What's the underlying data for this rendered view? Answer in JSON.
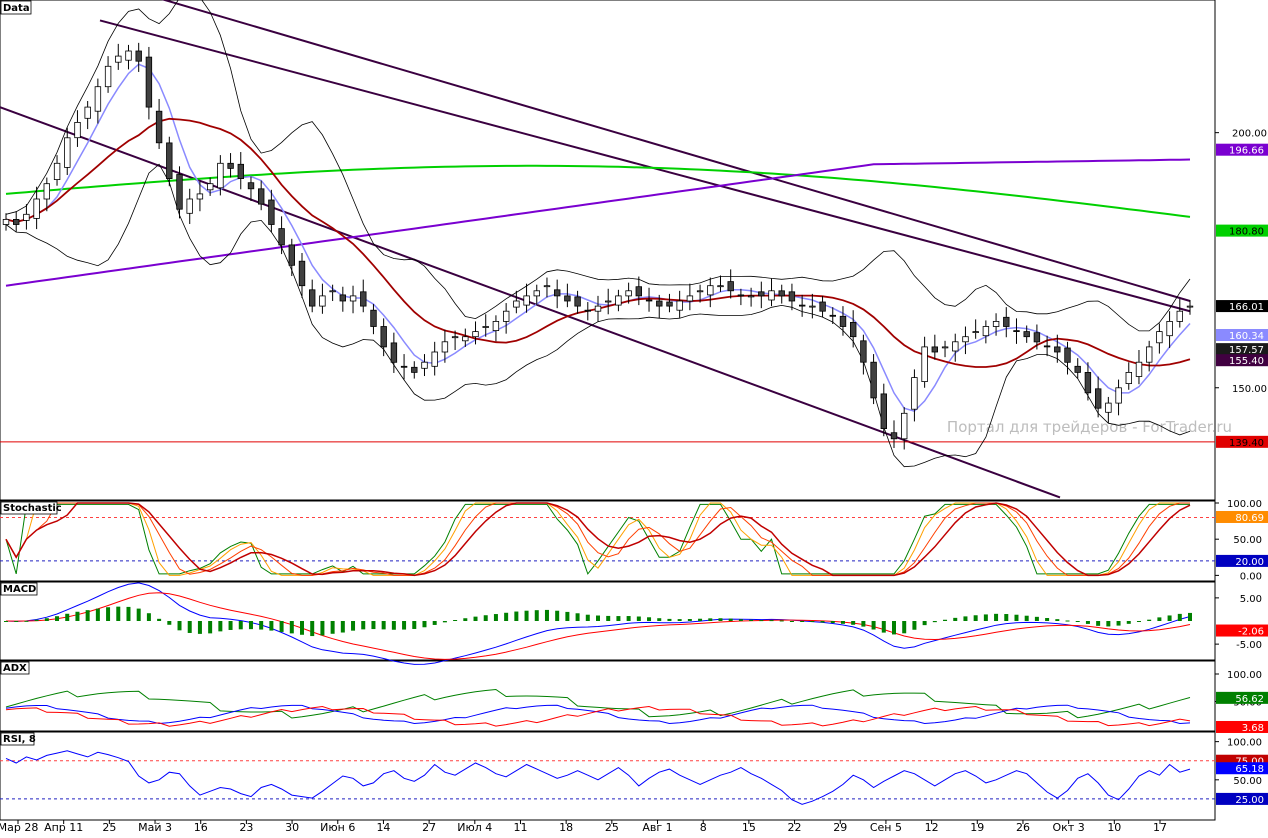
{
  "watermark": "Портал для трейдеров - ForTrader.ru",
  "colors": {
    "candle_up": "#ffffff",
    "candle_down": "#404040",
    "bollinger": "#000000",
    "ma_fast": "#8a8aff",
    "ma_mid": "#a00000",
    "ma_green": "#00d000",
    "ma_purple": "#7a00d0",
    "channel": "#3a0040",
    "support": "#e00000"
  },
  "x_axis": {
    "ticks": [
      "Мар 28",
      "Апр 11",
      "25",
      "Май 3",
      "16",
      "23",
      "30",
      "Июн 6",
      "14",
      "27",
      "Июл 4",
      "11",
      "18",
      "25",
      "Авг 1",
      "8",
      "15",
      "22",
      "29",
      "Сен 5",
      "12",
      "19",
      "26",
      "Окт 3",
      "10",
      "17"
    ]
  },
  "chart_data": [
    {
      "type": "candlestick",
      "title": "Data",
      "ylim": [
        128,
        226
      ],
      "y_ticks": [
        150,
        200
      ],
      "price_labels": [
        {
          "text": "196.66",
          "value": 196.66,
          "color": "#7a00d0",
          "text_color": "#ffffff"
        },
        {
          "text": "180.80",
          "value": 180.8,
          "color": "#00d000",
          "text_color": "#000000"
        },
        {
          "text": "166.01",
          "value": 166.01,
          "color": "#000000",
          "text_color": "#ffffff"
        },
        {
          "text": "160.34",
          "value": 160.34,
          "color": "#8a8aff",
          "text_color": "#ffffff"
        },
        {
          "text": "157.57",
          "value": 157.57,
          "color": "#1a1a1a",
          "text_color": "#ffffff"
        },
        {
          "text": "155.40",
          "value": 155.4,
          "color": "#400040",
          "text_color": "#ffffff"
        },
        {
          "text": "139.40",
          "value": 139.4,
          "color": "#e00000",
          "text_color": "#000000"
        }
      ],
      "support_level": 139.4,
      "close": [
        183,
        182,
        184,
        187,
        190,
        194,
        199,
        202,
        205,
        209,
        213,
        215,
        216,
        214,
        205,
        198,
        191,
        185,
        187,
        188,
        190,
        194,
        193,
        191,
        189,
        186,
        182,
        178,
        174,
        170,
        166,
        168,
        169,
        167,
        168,
        166,
        162,
        158,
        155,
        154,
        153,
        155,
        157,
        159,
        160,
        160,
        161,
        162,
        163,
        165,
        167,
        168,
        169,
        170,
        168,
        167,
        166,
        165,
        166,
        167,
        168,
        169,
        168,
        167,
        166,
        166,
        167,
        168,
        169,
        170,
        170,
        169,
        168,
        168,
        168,
        169,
        168,
        167,
        166,
        166,
        165,
        164,
        162,
        160,
        155,
        148,
        142,
        140,
        145,
        152,
        158,
        157,
        158,
        159,
        160,
        161,
        162,
        163,
        162,
        161,
        160,
        159,
        158,
        157,
        155,
        153,
        149,
        146,
        147,
        150,
        153,
        155,
        158,
        161,
        163,
        165,
        166
      ]
    },
    {
      "type": "line",
      "title": "Stochastic",
      "ylim": [
        -5,
        100
      ],
      "y_ticks": [
        0,
        50,
        100
      ],
      "y_tick_labels": [
        "0.00",
        "50.00",
        "100.00"
      ],
      "levels": [
        {
          "value": 80,
          "color": "#ff4040"
        },
        {
          "value": 20,
          "color": "#2020c0"
        }
      ],
      "value_labels": [
        {
          "text": "80.69",
          "value": 80.69,
          "color": "#ff8c00"
        },
        {
          "text": "20.00",
          "value": 20,
          "color": "#0000c0"
        }
      ]
    },
    {
      "type": "line",
      "title": "MACD",
      "ylim": [
        -8,
        8
      ],
      "y_ticks": [
        5,
        -5
      ],
      "y_tick_labels": [
        "5.00",
        "-5.00"
      ],
      "value_labels": [
        {
          "text": "-2.06",
          "value": -2.06,
          "color": "#ff0000"
        }
      ]
    },
    {
      "type": "line",
      "title": "ADX",
      "ylim": [
        0,
        120
      ],
      "y_ticks": [
        100,
        50
      ],
      "y_tick_labels": [
        "100.00",
        "50.00"
      ],
      "value_labels": [
        {
          "text": "56.62",
          "value": 56.62,
          "color": "#008000"
        },
        {
          "text": "3.68",
          "value": 3.68,
          "color": "#ff0000"
        }
      ]
    },
    {
      "type": "line",
      "title": "RSI, 8",
      "ylim": [
        0,
        110
      ],
      "y_ticks": [
        100,
        50
      ],
      "y_tick_labels": [
        "100.00",
        "50.00"
      ],
      "levels": [
        {
          "value": 75,
          "color": "#ff4040"
        },
        {
          "value": 25,
          "color": "#2020c0"
        }
      ],
      "value_labels": [
        {
          "text": "75.00",
          "value": 75,
          "color": "#c00000"
        },
        {
          "text": "65.18",
          "value": 65.18,
          "color": "#0000ff"
        },
        {
          "text": "25.00",
          "value": 25,
          "color": "#0000c0"
        }
      ],
      "values": [
        78,
        72,
        80,
        76,
        82,
        85,
        88,
        84,
        80,
        86,
        83,
        79,
        74,
        55,
        46,
        50,
        60,
        58,
        42,
        30,
        35,
        40,
        38,
        32,
        28,
        40,
        44,
        38,
        30,
        28,
        26,
        35,
        45,
        55,
        52,
        42,
        46,
        58,
        62,
        52,
        48,
        56,
        70,
        60,
        56,
        64,
        72,
        66,
        58,
        54,
        62,
        70,
        64,
        58,
        52,
        56,
        62,
        56,
        50,
        58,
        66,
        56,
        42,
        52,
        60,
        64,
        56,
        50,
        44,
        50,
        56,
        60,
        66,
        58,
        52,
        44,
        36,
        24,
        18,
        22,
        28,
        35,
        44,
        56,
        50,
        40,
        48,
        55,
        62,
        58,
        50,
        42,
        50,
        58,
        62,
        55,
        46,
        50,
        56,
        62,
        58,
        46,
        34,
        26,
        36,
        52,
        58,
        46,
        30,
        24,
        38,
        55,
        62,
        56,
        70,
        60,
        64
      ]
    }
  ]
}
